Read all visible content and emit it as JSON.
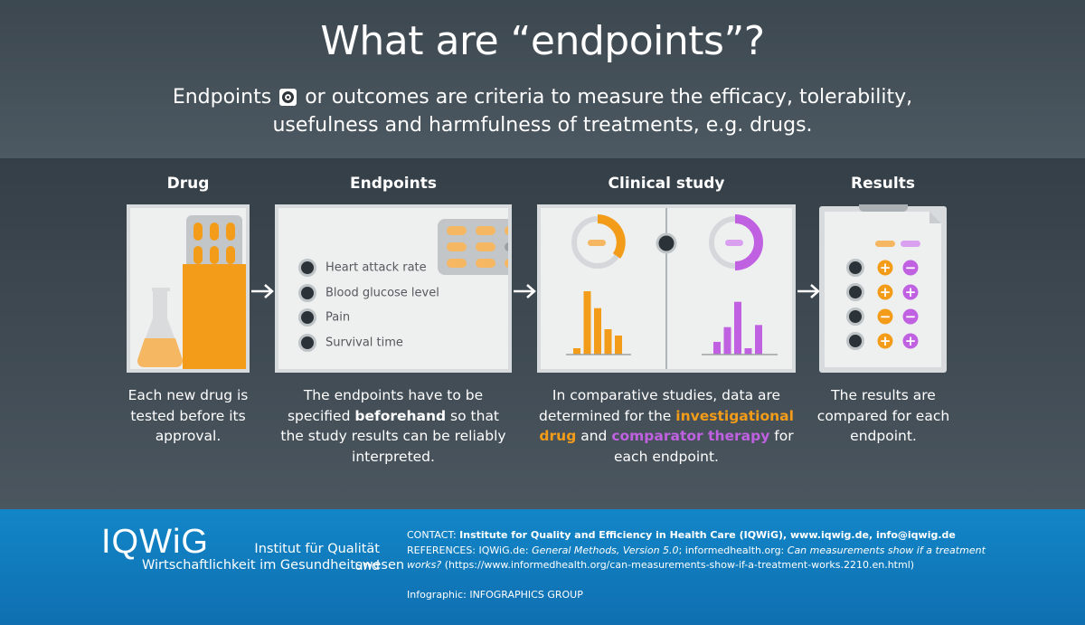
{
  "title": "What are “endpoints”?",
  "subtitle": {
    "part1": "Endpoints",
    "part2": "or outcomes are criteria to measure the efficacy, tolerability, usefulness and harmfulness of treatments, e.g. drugs."
  },
  "sections": {
    "drug": {
      "heading": "Drug",
      "description": "Each new drug is tested before its approval."
    },
    "endpoints": {
      "heading": "Endpoints",
      "items": [
        "Heart attack rate",
        "Blood glucose level",
        "Pain",
        "Survival time"
      ],
      "description_pre": "The endpoints have to be specified ",
      "description_bold": "beforehand",
      "description_post": " so that the study results can be reliably interpreted."
    },
    "clinical_study": {
      "heading": "Clinical study",
      "description_pre": "In comparative studies, data are determined for the ",
      "investigational": "investigational drug",
      "description_mid": " and ",
      "comparator": "comparator therapy",
      "description_post": " for each endpoint."
    },
    "results": {
      "heading": "Results",
      "description": "The results are compared for each endpoint.",
      "rows": [
        {
          "drug": "+",
          "comparator": "−"
        },
        {
          "drug": "+",
          "comparator": "+"
        },
        {
          "drug": "−",
          "comparator": "−"
        },
        {
          "drug": "+",
          "comparator": "+"
        }
      ]
    }
  },
  "bar_charts": {
    "investigational": [
      3,
      30,
      22,
      12,
      9
    ],
    "comparator": [
      6,
      13,
      25,
      3,
      14
    ]
  },
  "footer": {
    "logo": "IQWiG",
    "institute_line1": "Institut für Qualität und",
    "institute_line2": "Wirtschaftlichkeit im Gesundheitswesen",
    "contact_label": "CONTACT: ",
    "contact_text": "Institute for Quality and Efficiency in Health Care (IQWiG), www.iqwig.de, info@iqwig.de",
    "references_label": "REFERENCES: IQWiG.de: ",
    "references_general": "General Methods, Version 5.0",
    "references_mid": "; informedhealth.org: ",
    "references_title": "Can measurements show if a treatment works?",
    "references_url": " (https://www.informedhealth.org/can-measurements-show-if-a-treatment-works.2210.en.html)",
    "credit": "Infographic: INFOGRAPHICS GROUP"
  },
  "colors": {
    "investigational": "#f39c19",
    "comparator": "#c061e2",
    "background": "#3a454e",
    "footer": "#1286c8"
  }
}
